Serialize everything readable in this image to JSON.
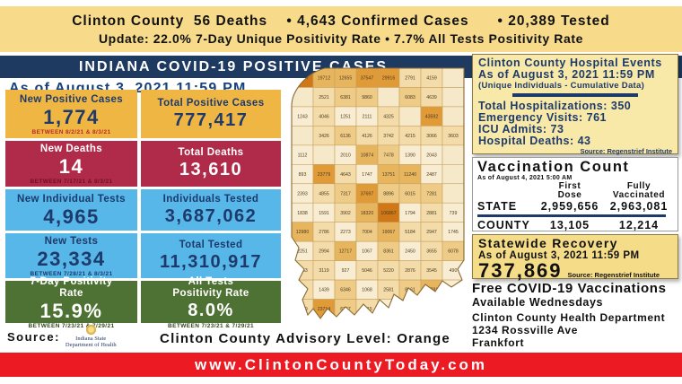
{
  "top_banner": {
    "line1": "Clinton County  56 Deaths    • 4,643 Confirmed Cases      • 20,389 Tested",
    "line2": "Update: 22.0% 7-Day Unique Positivity Rate • 7.7% All Tests Positivity Rate"
  },
  "header": {
    "title": "INDIANA COVID-19 POSITIVE CASES",
    "as_of": "As of August 3, 2021 11:59 PM"
  },
  "stats": {
    "columns": [
      {
        "id": "col1",
        "cards": [
          {
            "label": "New Positive Cases",
            "value": "1,774",
            "note": "BETWEEN 8/2/21 & 8/3/21",
            "style": "gold",
            "h": "h54"
          },
          {
            "label": "New Deaths",
            "value": "14",
            "note": "BETWEEN 7/17/21 & 8/3/21",
            "style": "red",
            "h": "h51"
          },
          {
            "label": "New Individual Tests",
            "value": "4,965",
            "note": "",
            "style": "blue",
            "h": "h46"
          },
          {
            "label": "New Tests",
            "value": "23,334",
            "note": "BETWEEN 7/28/21 & 8/3/21",
            "style": "blue",
            "h": "h50"
          },
          {
            "label": "7-Day Positivity Rate",
            "value": "15.9%",
            "note": "BETWEEN 7/23/21 & 7/29/21",
            "style": "green",
            "h": "h47"
          }
        ]
      },
      {
        "id": "col2",
        "cards": [
          {
            "label": "Total Positive Cases",
            "value": "777,417",
            "note": "",
            "style": "gold",
            "h": "h54"
          },
          {
            "label": "Total Deaths",
            "value": "13,610",
            "note": "",
            "style": "red",
            "h": "h51"
          },
          {
            "label": "Individuals Tested",
            "value": "3,687,062",
            "note": "",
            "style": "blue",
            "h": "h46"
          },
          {
            "label": "Total Tested",
            "value": "11,310,917",
            "note": "",
            "style": "blue",
            "h": "h50"
          },
          {
            "label": "All Tests Positivity Rate",
            "value": "8.0%",
            "note": "BETWEEN 7/23/21 & 7/29/21",
            "style": "green",
            "h": "h47"
          }
        ]
      }
    ]
  },
  "hospital": {
    "title": "Clinton County Hospital Events",
    "as_of": "As of August 3, 2021 11:59 PM",
    "subtitle": "(Unique Individuals - Cumulative Data)",
    "stats": [
      {
        "label": "Total Hospitalizations",
        "value": "350"
      },
      {
        "label": "Emergency Visits",
        "value": "761"
      },
      {
        "label": "ICU Admits",
        "value": "73"
      },
      {
        "label": "Hospital Deaths",
        "value": "43"
      }
    ],
    "source": "Source: Regenstrief Institute"
  },
  "vaccination": {
    "title": "Vaccination Count",
    "as_of": "As of August 4, 2021 5:00 AM",
    "col_headers": [
      "First\nDose",
      "Fully\nVaccinated"
    ],
    "rows": [
      {
        "name": "STATE",
        "first_dose": "2,959,656",
        "fully_vaccinated": "2,963,081"
      },
      {
        "name": "COUNTY",
        "first_dose": "13,105",
        "fully_vaccinated": "12,214"
      }
    ]
  },
  "recovery": {
    "title": "Statewide Recovery",
    "as_of": "As of August 3, 2021 11:59 PM",
    "value": "737,869",
    "source": "Source: Regenstrief Institute"
  },
  "right_info": {
    "free_vax_line1": "Free COVID-19 Vaccinations",
    "free_vax_line2": "Available Wednesdays",
    "dept": "Clinton County Health Department",
    "address": "1234 Rossville Ave",
    "city": "Frankfort"
  },
  "advisory": "Clinton County Advisory Level: Orange",
  "source_block": {
    "label": "Source:",
    "logo_line1": "Indiana State",
    "logo_line2": "Department of Health"
  },
  "footer": {
    "url": "www.ClintonCountyToday.com"
  },
  "colors": {
    "navy": "#1E3A60",
    "banner_yellow": "#F7DB8B",
    "card_gold": "#EFB644",
    "card_red": "#B02B49",
    "card_blue": "#56B7E8",
    "card_green": "#4E7233",
    "panel_yellow": "#F8E9A8",
    "footer_red": "#EC1B23"
  },
  "map": {
    "description": "Indiana county-level COVID-19 positive case counts (choropleth)",
    "cols": 8,
    "rows": [
      [
        "57307",
        "19712",
        "12655",
        "37547",
        "29916",
        "2791",
        "4159",
        ""
      ],
      [
        "",
        "2521",
        "6381",
        "9860",
        "",
        "6083",
        "4639",
        ""
      ],
      [
        "1243",
        "4046",
        "1251",
        "2111",
        "4325",
        "",
        "43592",
        ""
      ],
      [
        "",
        "3426",
        "6136",
        "4126",
        "3742",
        "4215",
        "3066",
        "3603"
      ],
      [
        "1112",
        "",
        "2010",
        "10874",
        "7478",
        "1390",
        "2043",
        ""
      ],
      [
        "893",
        "23779",
        "4643",
        "1747",
        "13751",
        "11240",
        "2487",
        ""
      ],
      [
        "2393",
        "4855",
        "7317",
        "37697",
        "8896",
        "6015",
        "7281",
        ""
      ],
      [
        "1838",
        "1591",
        "3902",
        "18320",
        "106867",
        "1794",
        "2881",
        "739"
      ],
      [
        "12980",
        "2786",
        "2273",
        "7004",
        "19067",
        "5184",
        "2947",
        "1745"
      ],
      [
        "2251",
        "2994",
        "12717",
        "1067",
        "8361",
        "2450",
        "3655",
        "6078"
      ],
      [
        "3963",
        "3119",
        "927",
        "5046",
        "5220",
        "2876",
        "3545",
        "490"
      ],
      [
        "4737",
        "1439",
        "6346",
        "1068",
        "2581",
        "8161",
        "13781",
        "986"
      ],
      [
        "2899",
        "23714",
        "6257",
        "3415",
        "1949",
        "4601",
        "",
        ""
      ]
    ]
  }
}
